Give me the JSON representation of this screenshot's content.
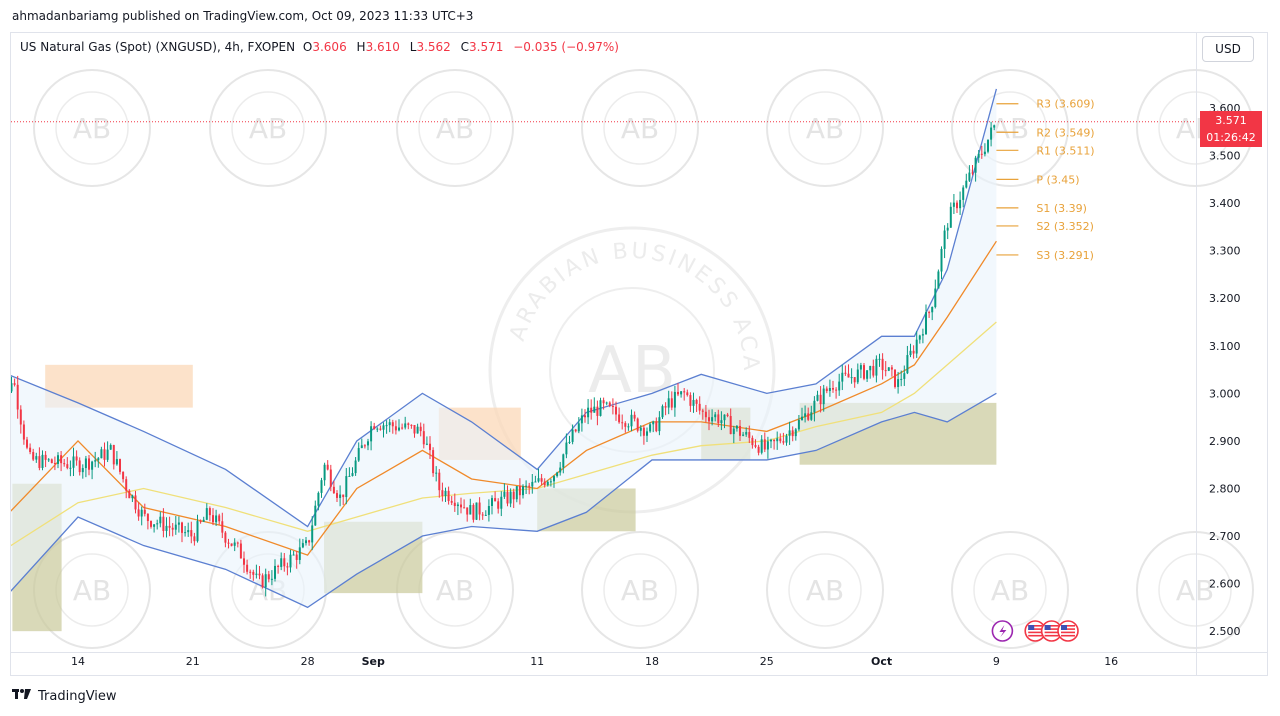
{
  "published_line": "ahmadanbariamg published on TradingView.com, Oct 09, 2023 11:33 UTC+3",
  "legend": {
    "symbol": "US Natural Gas (Spot) (XNGUSD), 4h, FXOPEN",
    "o_label": "O",
    "o_value": "3.606",
    "h_label": "H",
    "h_value": "3.610",
    "l_label": "L",
    "l_value": "3.562",
    "c_label": "C",
    "c_value": "3.571",
    "change": "−0.035 (−0.97%)"
  },
  "currency_button": "USD",
  "current_price": {
    "value": "3.571",
    "countdown": "01:26:42"
  },
  "watermark_text": "ARABIAN BUSINESS ACADEMY",
  "watermark_logo": "AB",
  "footer_brand": "TradingView",
  "colors": {
    "up": "#089981",
    "down": "#f23645",
    "bollinger": "#5b7fd1",
    "bollinger_fill": "#eaf3fb",
    "ema_fast": "#f08a2a",
    "ema_slow": "#f0e07a",
    "pivots": "#e8a23a",
    "zone_olive": "#c9c99a",
    "zone_orange": "#fbd8b8"
  },
  "events": [
    {
      "icon": "lightning-icon",
      "x": "2023-10-09"
    },
    {
      "icon": "us-flag-icon",
      "x": "2023-10-11"
    },
    {
      "icon": "us-flag-icon",
      "x": "2023-10-12"
    },
    {
      "icon": "us-flag-icon",
      "x": "2023-10-13"
    }
  ],
  "chart_data": {
    "type": "candlestick",
    "y_range": [
      2.47,
      3.68
    ],
    "y_ticks": [
      "3.600",
      "3.500",
      "3.400",
      "3.300",
      "3.200",
      "3.100",
      "3.000",
      "2.900",
      "2.800",
      "2.700",
      "2.600",
      "2.500"
    ],
    "x_ticks": [
      "14",
      "21",
      "28",
      "Sep",
      "11",
      "18",
      "25",
      "Oct",
      "9",
      "16"
    ],
    "x_tick_dates": [
      "2023-08-14",
      "2023-08-21",
      "2023-08-28",
      "2023-09-01",
      "2023-09-11",
      "2023-09-18",
      "2023-09-25",
      "2023-10-02",
      "2023-10-09",
      "2023-10-16"
    ],
    "pivot_levels": [
      {
        "name": "R3",
        "value": 3.609,
        "label": "R3 (3.609)"
      },
      {
        "name": "R2",
        "value": 3.549,
        "label": "R2 (3.549)"
      },
      {
        "name": "R1",
        "value": 3.511,
        "label": "R1 (3.511)"
      },
      {
        "name": "P",
        "value": 3.45,
        "label": "P (3.45)"
      },
      {
        "name": "S1",
        "value": 3.39,
        "label": "S1 (3.39)"
      },
      {
        "name": "S2",
        "value": 3.352,
        "label": "S2 (3.352)"
      },
      {
        "name": "S3",
        "value": 3.291,
        "label": "S3 (3.291)"
      }
    ],
    "close_path": [
      [
        "2023-08-09",
        2.87
      ],
      [
        "2023-08-10",
        3.04
      ],
      [
        "2023-08-11",
        2.86
      ],
      [
        "2023-08-14",
        2.85
      ],
      [
        "2023-08-15",
        2.86
      ],
      [
        "2023-08-16",
        2.88
      ],
      [
        "2023-08-17",
        2.8
      ],
      [
        "2023-08-18",
        2.74
      ],
      [
        "2023-08-21",
        2.7
      ],
      [
        "2023-08-22",
        2.75
      ],
      [
        "2023-08-23",
        2.7
      ],
      [
        "2023-08-24",
        2.66
      ],
      [
        "2023-08-25",
        2.6
      ],
      [
        "2023-08-28",
        2.68
      ],
      [
        "2023-08-29",
        2.85
      ],
      [
        "2023-08-30",
        2.78
      ],
      [
        "2023-08-31",
        2.86
      ],
      [
        "2023-09-01",
        2.94
      ],
      [
        "2023-09-04",
        2.92
      ],
      [
        "2023-09-05",
        2.8
      ],
      [
        "2023-09-06",
        2.78
      ],
      [
        "2023-09-07",
        2.75
      ],
      [
        "2023-09-08",
        2.76
      ],
      [
        "2023-09-11",
        2.81
      ],
      [
        "2023-09-12",
        2.83
      ],
      [
        "2023-09-13",
        2.9
      ],
      [
        "2023-09-14",
        2.96
      ],
      [
        "2023-09-15",
        2.97
      ],
      [
        "2023-09-18",
        2.92
      ],
      [
        "2023-09-19",
        2.98
      ],
      [
        "2023-09-20",
        3.0
      ],
      [
        "2023-09-21",
        2.96
      ],
      [
        "2023-09-22",
        2.95
      ],
      [
        "2023-09-25",
        2.88
      ],
      [
        "2023-09-26",
        2.91
      ],
      [
        "2023-09-27",
        2.94
      ],
      [
        "2023-09-28",
        2.98
      ],
      [
        "2023-09-29",
        3.02
      ],
      [
        "2023-10-02",
        3.06
      ],
      [
        "2023-10-03",
        3.02
      ],
      [
        "2023-10-04",
        3.1
      ],
      [
        "2023-10-05",
        3.18
      ],
      [
        "2023-10-06",
        3.36
      ],
      [
        "2023-10-09",
        3.57
      ]
    ],
    "bollinger_upper": [
      [
        "2023-08-09",
        3.05
      ],
      [
        "2023-08-14",
        2.98
      ],
      [
        "2023-08-18",
        2.92
      ],
      [
        "2023-08-23",
        2.84
      ],
      [
        "2023-08-28",
        2.72
      ],
      [
        "2023-08-31",
        2.9
      ],
      [
        "2023-09-04",
        3.0
      ],
      [
        "2023-09-07",
        2.94
      ],
      [
        "2023-09-11",
        2.84
      ],
      [
        "2023-09-14",
        2.96
      ],
      [
        "2023-09-18",
        3.0
      ],
      [
        "2023-09-21",
        3.04
      ],
      [
        "2023-09-25",
        3.0
      ],
      [
        "2023-09-28",
        3.02
      ],
      [
        "2023-10-02",
        3.12
      ],
      [
        "2023-10-04",
        3.12
      ],
      [
        "2023-10-06",
        3.26
      ],
      [
        "2023-10-09",
        3.64
      ]
    ],
    "bollinger_lower": [
      [
        "2023-08-09",
        2.55
      ],
      [
        "2023-08-14",
        2.74
      ],
      [
        "2023-08-18",
        2.68
      ],
      [
        "2023-08-23",
        2.63
      ],
      [
        "2023-08-28",
        2.55
      ],
      [
        "2023-08-31",
        2.62
      ],
      [
        "2023-09-04",
        2.7
      ],
      [
        "2023-09-07",
        2.72
      ],
      [
        "2023-09-11",
        2.71
      ],
      [
        "2023-09-14",
        2.75
      ],
      [
        "2023-09-18",
        2.86
      ],
      [
        "2023-09-21",
        2.86
      ],
      [
        "2023-09-25",
        2.86
      ],
      [
        "2023-09-28",
        2.88
      ],
      [
        "2023-10-02",
        2.94
      ],
      [
        "2023-10-04",
        2.96
      ],
      [
        "2023-10-06",
        2.94
      ],
      [
        "2023-10-09",
        3.0
      ]
    ],
    "ema_fast": [
      [
        "2023-08-09",
        2.72
      ],
      [
        "2023-08-14",
        2.9
      ],
      [
        "2023-08-18",
        2.76
      ],
      [
        "2023-08-23",
        2.72
      ],
      [
        "2023-08-28",
        2.66
      ],
      [
        "2023-08-31",
        2.8
      ],
      [
        "2023-09-04",
        2.88
      ],
      [
        "2023-09-07",
        2.82
      ],
      [
        "2023-09-11",
        2.8
      ],
      [
        "2023-09-14",
        2.88
      ],
      [
        "2023-09-18",
        2.94
      ],
      [
        "2023-09-21",
        2.94
      ],
      [
        "2023-09-25",
        2.92
      ],
      [
        "2023-09-28",
        2.96
      ],
      [
        "2023-10-02",
        3.02
      ],
      [
        "2023-10-04",
        3.06
      ],
      [
        "2023-10-06",
        3.16
      ],
      [
        "2023-10-09",
        3.32
      ]
    ],
    "ema_slow": [
      [
        "2023-08-09",
        2.66
      ],
      [
        "2023-08-14",
        2.77
      ],
      [
        "2023-08-18",
        2.8
      ],
      [
        "2023-08-23",
        2.76
      ],
      [
        "2023-08-28",
        2.71
      ],
      [
        "2023-08-31",
        2.74
      ],
      [
        "2023-09-04",
        2.78
      ],
      [
        "2023-09-07",
        2.79
      ],
      [
        "2023-09-11",
        2.8
      ],
      [
        "2023-09-14",
        2.83
      ],
      [
        "2023-09-18",
        2.87
      ],
      [
        "2023-09-21",
        2.89
      ],
      [
        "2023-09-25",
        2.9
      ],
      [
        "2023-09-28",
        2.93
      ],
      [
        "2023-10-02",
        2.96
      ],
      [
        "2023-10-04",
        3.0
      ],
      [
        "2023-10-06",
        3.06
      ],
      [
        "2023-10-09",
        3.15
      ]
    ],
    "zones": [
      {
        "from": "2023-08-10",
        "to": "2023-08-13",
        "low": 2.5,
        "high": 2.81,
        "color": "olive"
      },
      {
        "from": "2023-08-12",
        "to": "2023-08-21",
        "low": 2.97,
        "high": 3.06,
        "color": "orange"
      },
      {
        "from": "2023-08-29",
        "to": "2023-09-04",
        "low": 2.58,
        "high": 2.73,
        "color": "olive"
      },
      {
        "from": "2023-09-05",
        "to": "2023-09-10",
        "low": 2.86,
        "high": 2.97,
        "color": "orange"
      },
      {
        "from": "2023-09-11",
        "to": "2023-09-17",
        "low": 2.71,
        "high": 2.8,
        "color": "olive"
      },
      {
        "from": "2023-09-21",
        "to": "2023-09-24",
        "low": 2.86,
        "high": 2.97,
        "color": "olive"
      },
      {
        "from": "2023-09-27",
        "to": "2023-10-09",
        "low": 2.85,
        "high": 2.98,
        "color": "olive"
      }
    ]
  }
}
